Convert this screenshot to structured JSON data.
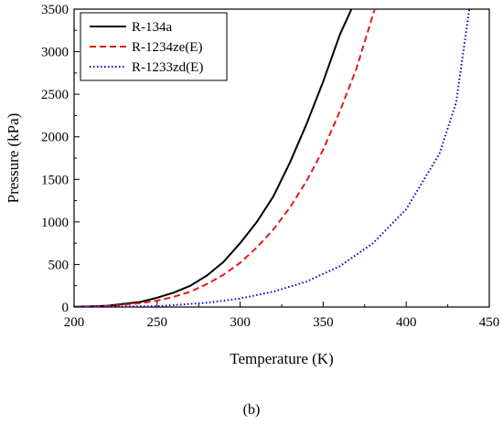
{
  "panel_label": "(b)",
  "chart_data": {
    "type": "line",
    "xlabel": "Temperature (K)",
    "ylabel": "Pressure (kPa)",
    "xlim": [
      200,
      450
    ],
    "ylim": [
      0,
      3500
    ],
    "xticks": [
      200,
      250,
      300,
      350,
      400,
      450
    ],
    "yticks": [
      0,
      500,
      1000,
      1500,
      2000,
      2500,
      3000,
      3500
    ],
    "legend_position": "top-left",
    "grid": false,
    "series": [
      {
        "name": "R-134a",
        "color": "#000000",
        "dash": "solid",
        "x": [
          200,
          220,
          240,
          250,
          260,
          270,
          280,
          290,
          300,
          310,
          320,
          330,
          340,
          350,
          360,
          367
        ],
        "y": [
          2,
          15,
          60,
          110,
          170,
          250,
          370,
          530,
          750,
          1000,
          1300,
          1700,
          2150,
          2650,
          3200,
          3500
        ]
      },
      {
        "name": "R-1234ze(E)",
        "color": "#e31a1c",
        "dash": "dashed",
        "x": [
          200,
          220,
          240,
          250,
          260,
          270,
          280,
          290,
          300,
          310,
          320,
          330,
          340,
          350,
          360,
          370,
          381
        ],
        "y": [
          2,
          10,
          45,
          75,
          120,
          180,
          270,
          380,
          520,
          700,
          910,
          1170,
          1480,
          1850,
          2300,
          2800,
          3500
        ]
      },
      {
        "name": "R-1233zd(E)",
        "color": "#0000cc",
        "dash": "dotted",
        "x": [
          200,
          250,
          280,
          300,
          320,
          340,
          360,
          380,
          400,
          420,
          430,
          438
        ],
        "y": [
          0,
          10,
          50,
          100,
          180,
          300,
          480,
          750,
          1150,
          1800,
          2400,
          3500
        ]
      }
    ]
  }
}
